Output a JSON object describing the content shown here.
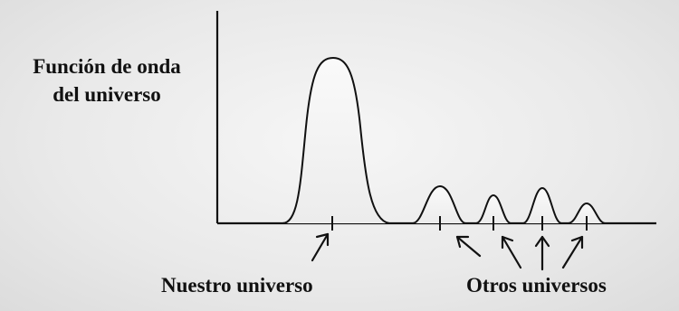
{
  "diagram": {
    "y_axis_label_line1": "Función de onda",
    "y_axis_label_line2": "del universo",
    "label_our_universe": "Nuestro universo",
    "label_other_universes": "Otros universos",
    "colors": {
      "stroke": "#111111",
      "peak_fill": "#f4f4f4",
      "background": "#e8e8e8"
    }
  }
}
